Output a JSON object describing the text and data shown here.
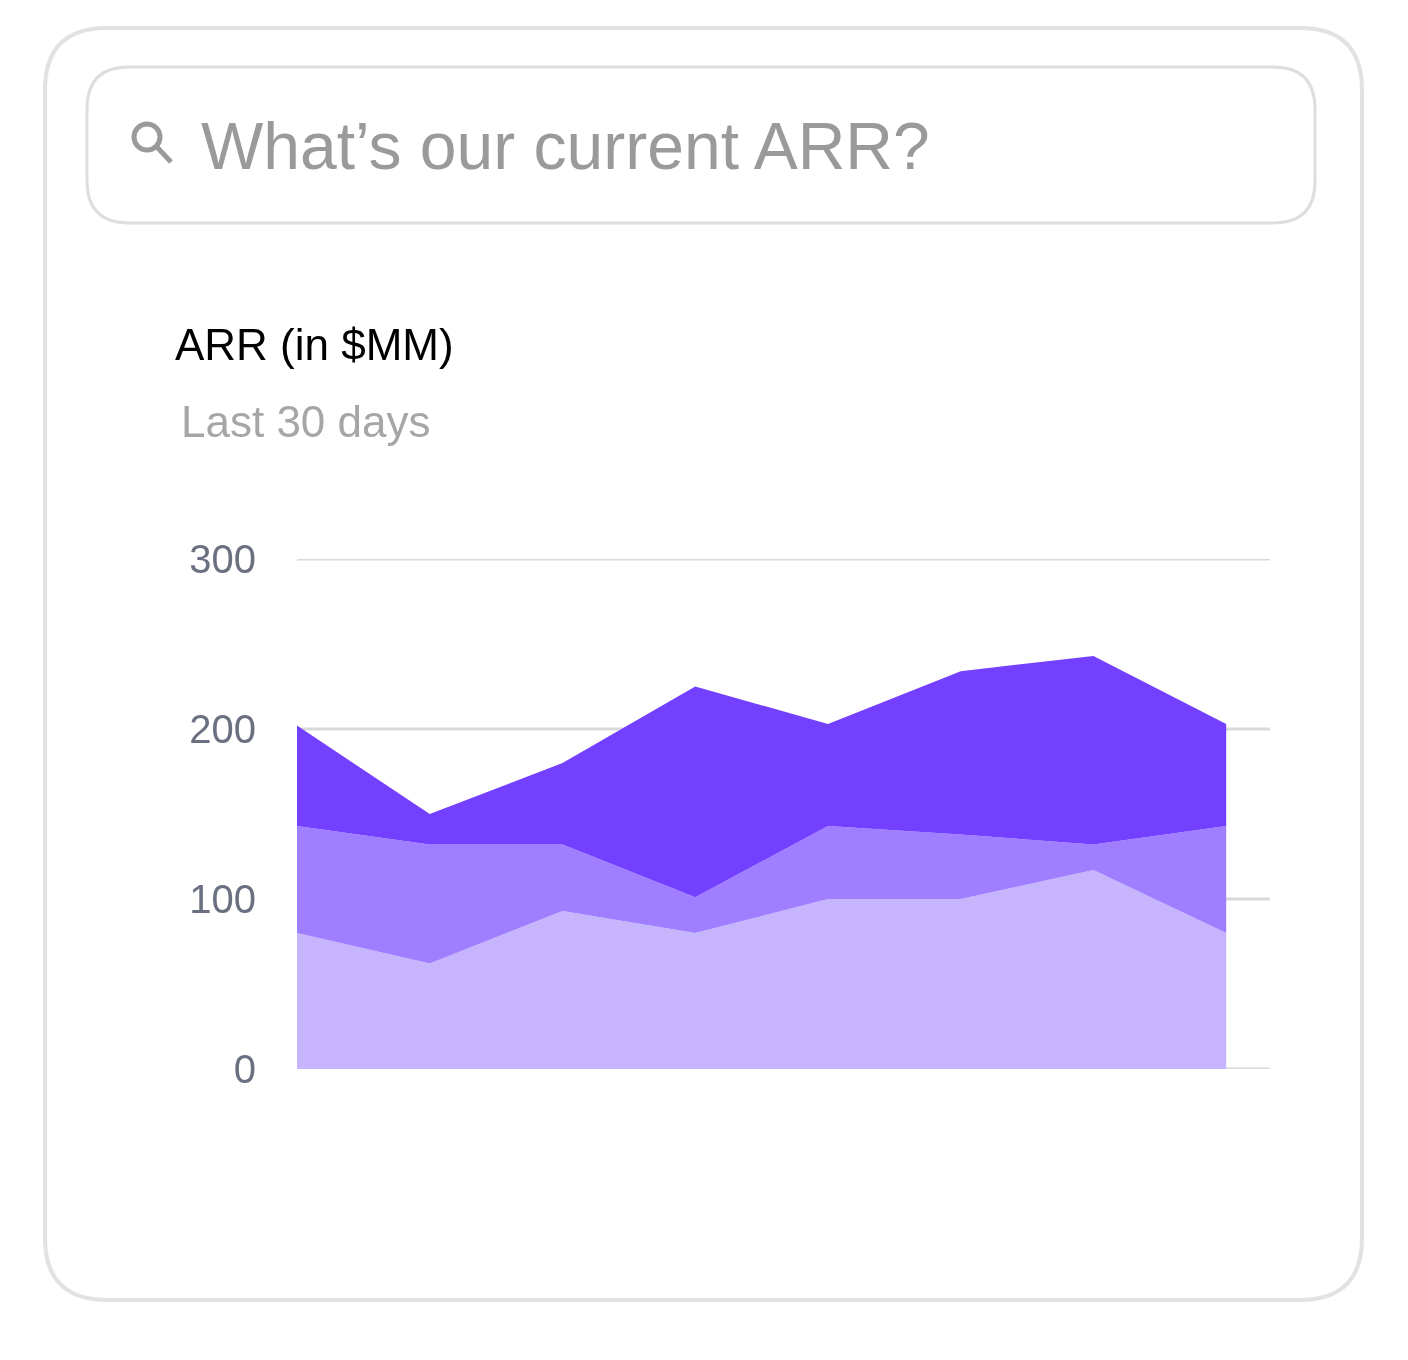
{
  "chart_data": {
    "type": "area",
    "title": "ARR (in $MM)",
    "subtitle": "Last 30 days",
    "annotations": [
      "What’s our current ARR?"
    ],
    "stacked": true,
    "categories": [
      null,
      null,
      null,
      null,
      null,
      null,
      null,
      null
    ],
    "series": [
      {
        "color": "#c6b4fc",
        "values": [
          80,
          62,
          93,
          80,
          100,
          100,
          117,
          80
        ]
      },
      {
        "color": "#9f7fff",
        "values": [
          63,
          70,
          39,
          21,
          43,
          38,
          15,
          63
        ]
      },
      {
        "color": "#7340ff",
        "values": [
          59,
          18,
          48,
          124,
          60,
          96,
          111,
          60
        ]
      }
    ],
    "ylim": [
      0,
      300
    ],
    "yticks": [
      0,
      100,
      200,
      300
    ],
    "grid": "y",
    "tick_labels": "y"
  }
}
